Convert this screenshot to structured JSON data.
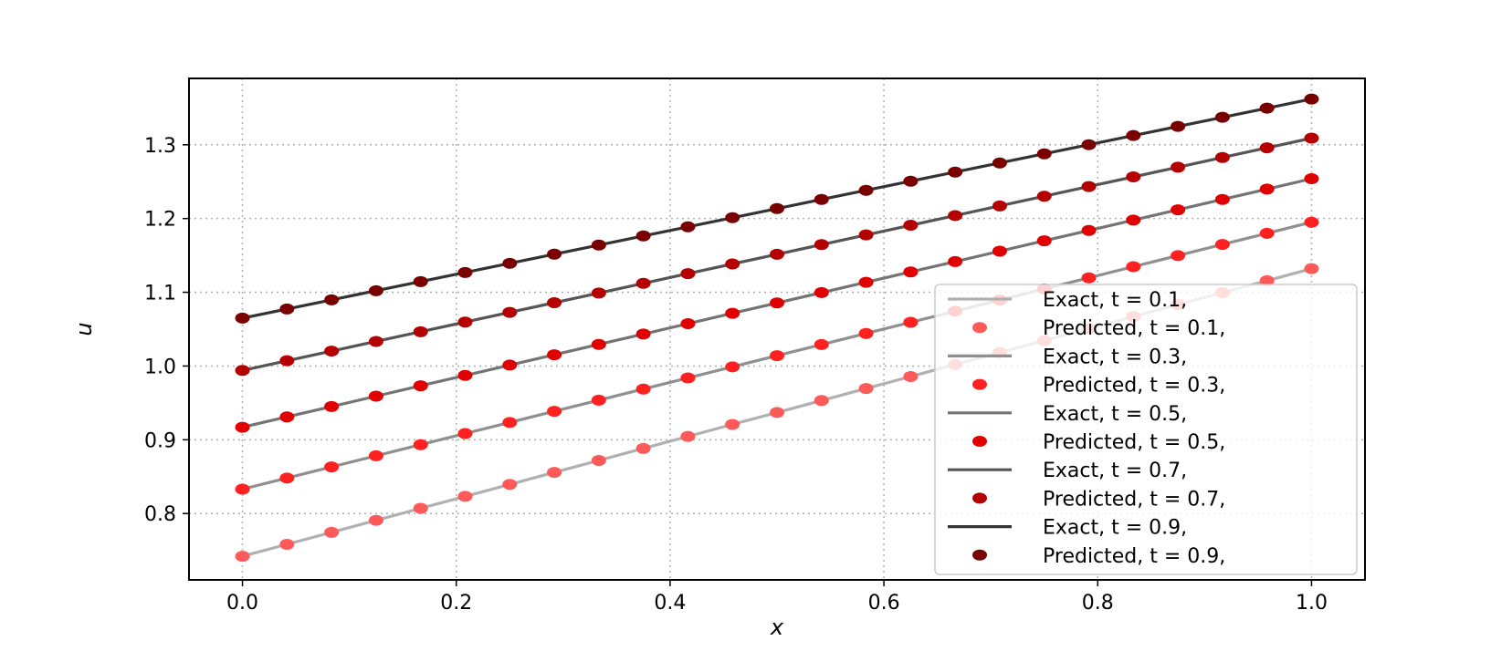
{
  "chart_data": {
    "type": "line",
    "title": "",
    "xlabel": "x",
    "ylabel": "u",
    "xlim": [
      -0.05,
      1.05
    ],
    "ylim": [
      0.71,
      1.39
    ],
    "xticks": [
      "0.0",
      "0.2",
      "0.4",
      "0.6",
      "0.8",
      "1.0"
    ],
    "yticks": [
      "0.8",
      "0.9",
      "1.0",
      "1.1",
      "1.2",
      "1.3"
    ],
    "grid": true,
    "legend_position": "lower-right",
    "x": [
      0.0,
      0.04167,
      0.08333,
      0.125,
      0.16667,
      0.20833,
      0.25,
      0.29167,
      0.33333,
      0.375,
      0.41667,
      0.45833,
      0.5,
      0.54167,
      0.58333,
      0.625,
      0.66667,
      0.70833,
      0.75,
      0.79167,
      0.83333,
      0.875,
      0.91667,
      0.95833,
      1.0
    ],
    "series": [
      {
        "name": "Exact, t = 0.1,",
        "kind": "line",
        "color": "#b0b0b0",
        "u0": 0.742,
        "u1": 1.132
      },
      {
        "name": "Predicted, t = 0.1,",
        "kind": "markers",
        "color": "#ff5a5a",
        "u0": 0.742,
        "u1": 1.132
      },
      {
        "name": "Exact, t = 0.3,",
        "kind": "line",
        "color": "#8f8f8f",
        "u0": 0.833,
        "u1": 1.195
      },
      {
        "name": "Predicted, t = 0.3,",
        "kind": "markers",
        "color": "#ff2020",
        "u0": 0.833,
        "u1": 1.195
      },
      {
        "name": "Exact, t = 0.5,",
        "kind": "line",
        "color": "#747474",
        "u0": 0.917,
        "u1": 1.254
      },
      {
        "name": "Predicted, t = 0.5,",
        "kind": "markers",
        "color": "#e00000",
        "u0": 0.917,
        "u1": 1.254
      },
      {
        "name": "Exact, t = 0.7,",
        "kind": "line",
        "color": "#555555",
        "u0": 0.994,
        "u1": 1.309
      },
      {
        "name": "Predicted, t = 0.7,",
        "kind": "markers",
        "color": "#b40000",
        "u0": 0.994,
        "u1": 1.309
      },
      {
        "name": "Exact, t = 0.9,",
        "kind": "line",
        "color": "#333333",
        "u0": 1.065,
        "u1": 1.362
      },
      {
        "name": "Predicted, t = 0.9,",
        "kind": "markers",
        "color": "#7a0000",
        "u0": 1.065,
        "u1": 1.362
      }
    ]
  }
}
